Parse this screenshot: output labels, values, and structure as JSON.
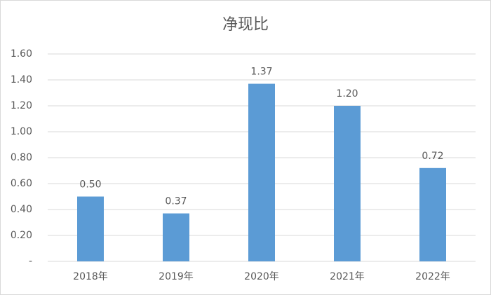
{
  "chart_data": {
    "type": "bar",
    "title": "净现比",
    "categories": [
      "2018年",
      "2019年",
      "2020年",
      "2021年",
      "2022年"
    ],
    "values": [
      0.5,
      0.37,
      1.37,
      1.2,
      0.72
    ],
    "value_labels": [
      "0.50",
      "0.37",
      "1.37",
      "1.20",
      "0.72"
    ],
    "color": "#5b9bd5",
    "ylim": [
      0,
      1.6
    ],
    "yticks": [
      {
        "value": 0,
        "label": "-"
      },
      {
        "value": 0.2,
        "label": "0.20"
      },
      {
        "value": 0.4,
        "label": "0.40"
      },
      {
        "value": 0.6,
        "label": "0.60"
      },
      {
        "value": 0.8,
        "label": "0.80"
      },
      {
        "value": 1.0,
        "label": "1.00"
      },
      {
        "value": 1.2,
        "label": "1.20"
      },
      {
        "value": 1.4,
        "label": "1.40"
      },
      {
        "value": 1.6,
        "label": "1.60"
      }
    ],
    "grid": true
  }
}
